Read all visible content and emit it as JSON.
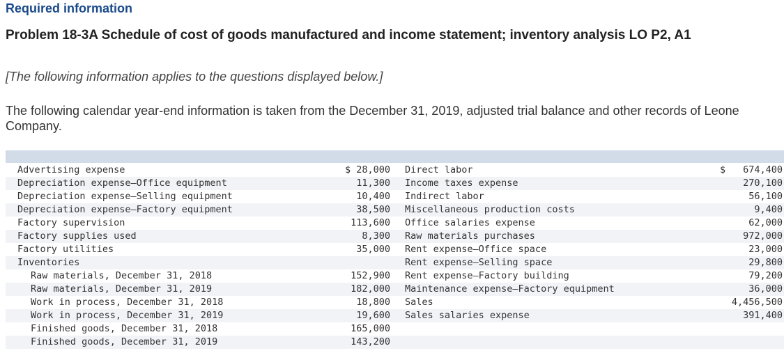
{
  "header": {
    "required": "Required information",
    "problem_title": "Problem 18-3A Schedule of cost of goods manufactured and income statement; inventory analysis LO P2, A1",
    "note": "[The following information applies to the questions displayed below.]",
    "intro": "The following calendar year-end information is taken from the December 31, 2019, adjusted trial balance and other records of Leone Company."
  },
  "table": {
    "rows": [
      {
        "left_label": "Advertising expense",
        "left_amount": "$ 28,000",
        "right_label": "Direct labor",
        "right_dollar": "$",
        "right_amount": "674,400"
      },
      {
        "left_label": "Depreciation expense—Office equipment",
        "left_amount": "11,300",
        "right_label": "Income taxes expense",
        "right_dollar": "",
        "right_amount": "270,100"
      },
      {
        "left_label": "Depreciation expense—Selling equipment",
        "left_amount": "10,400",
        "right_label": "Indirect labor",
        "right_dollar": "",
        "right_amount": "56,100"
      },
      {
        "left_label": "Depreciation expense—Factory equipment",
        "left_amount": "38,500",
        "right_label": "Miscellaneous production costs",
        "right_dollar": "",
        "right_amount": "9,400"
      },
      {
        "left_label": "Factory supervision",
        "left_amount": "113,600",
        "right_label": "Office salaries expense",
        "right_dollar": "",
        "right_amount": "62,000"
      },
      {
        "left_label": "Factory supplies used",
        "left_amount": "8,300",
        "right_label": "Raw materials purchases",
        "right_dollar": "",
        "right_amount": "972,000"
      },
      {
        "left_label": "Factory utilities",
        "left_amount": "35,000",
        "right_label": "Rent expense—Office space",
        "right_dollar": "",
        "right_amount": "23,000"
      },
      {
        "left_label": "Inventories",
        "left_amount": "",
        "right_label": "Rent expense—Selling space",
        "right_dollar": "",
        "right_amount": "29,800"
      },
      {
        "left_label": "Raw materials, December 31, 2018",
        "left_amount": "152,900",
        "right_label": "Rent expense—Factory building",
        "right_dollar": "",
        "right_amount": "79,200"
      },
      {
        "left_label": "Raw materials, December 31, 2019",
        "left_amount": "182,000",
        "right_label": "Maintenance expense—Factory equipment",
        "right_dollar": "",
        "right_amount": "36,000"
      },
      {
        "left_label": "Work in process, December 31, 2018",
        "left_amount": "18,800",
        "right_label": "Sales",
        "right_dollar": "",
        "right_amount": "4,456,500"
      },
      {
        "left_label": "Work in process, December 31, 2019",
        "left_amount": "19,600",
        "right_label": "Sales salaries expense",
        "right_dollar": "",
        "right_amount": "391,400"
      },
      {
        "left_label": "Finished goods, December 31, 2018",
        "left_amount": "165,000",
        "right_label": "",
        "right_dollar": "",
        "right_amount": ""
      },
      {
        "left_label": "Finished goods, December 31, 2019",
        "left_amount": "143,200",
        "right_label": "",
        "right_dollar": "",
        "right_amount": ""
      }
    ]
  }
}
